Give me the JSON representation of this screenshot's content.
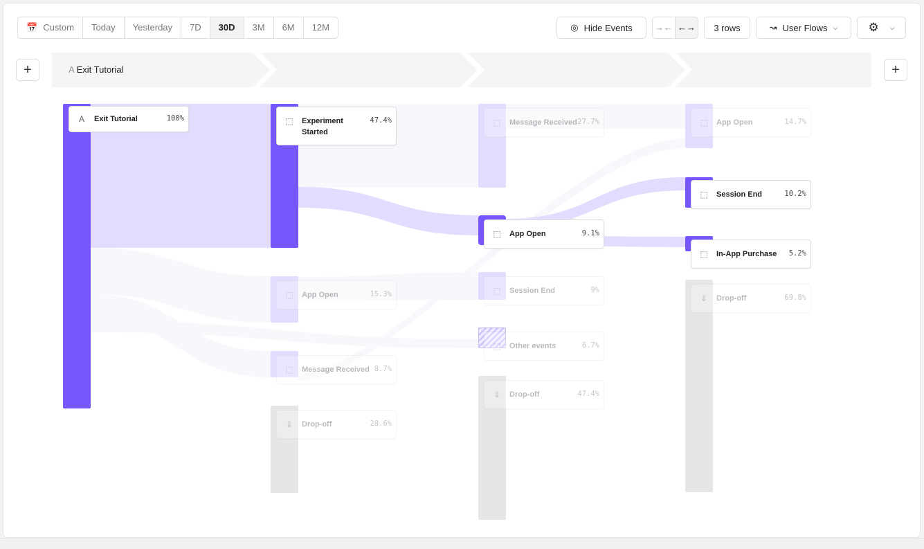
{
  "toolbar": {
    "ranges": [
      "Custom",
      "Today",
      "Yesterday",
      "7D",
      "30D",
      "3M",
      "6M",
      "12M"
    ],
    "selected_range": "30D",
    "hide_events": "Hide Events",
    "rows": "3 rows",
    "view": "User Flows"
  },
  "steps": {
    "first": "Exit Tutorial",
    "first_letter": "A"
  },
  "colors": {
    "accent": "#7856ff",
    "accent_light": "#e3dcff",
    "dropoff": "#e6e6e6"
  },
  "nodes": [
    {
      "name": "Exit Tutorial",
      "pct": "100%",
      "icon": "A"
    },
    {
      "name": "Experiment Started",
      "pct": "47.4%"
    },
    {
      "name": "App Open",
      "pct": "15.3%"
    },
    {
      "name": "Message Received",
      "pct": "8.7%"
    },
    {
      "name": "Drop-off",
      "pct": "28.6%"
    },
    {
      "name": "Message Received",
      "pct": "27.7%"
    },
    {
      "name": "App Open",
      "pct": "9.1%"
    },
    {
      "name": "Session End",
      "pct": "9%"
    },
    {
      "name": "Other events",
      "pct": "6.7%"
    },
    {
      "name": "Drop-off",
      "pct": "47.4%"
    },
    {
      "name": "App Open",
      "pct": "14.7%"
    },
    {
      "name": "Session End",
      "pct": "10.2%"
    },
    {
      "name": "In-App Purchase",
      "pct": "5.2%"
    },
    {
      "name": "Drop-off",
      "pct": "69.8%"
    }
  ]
}
